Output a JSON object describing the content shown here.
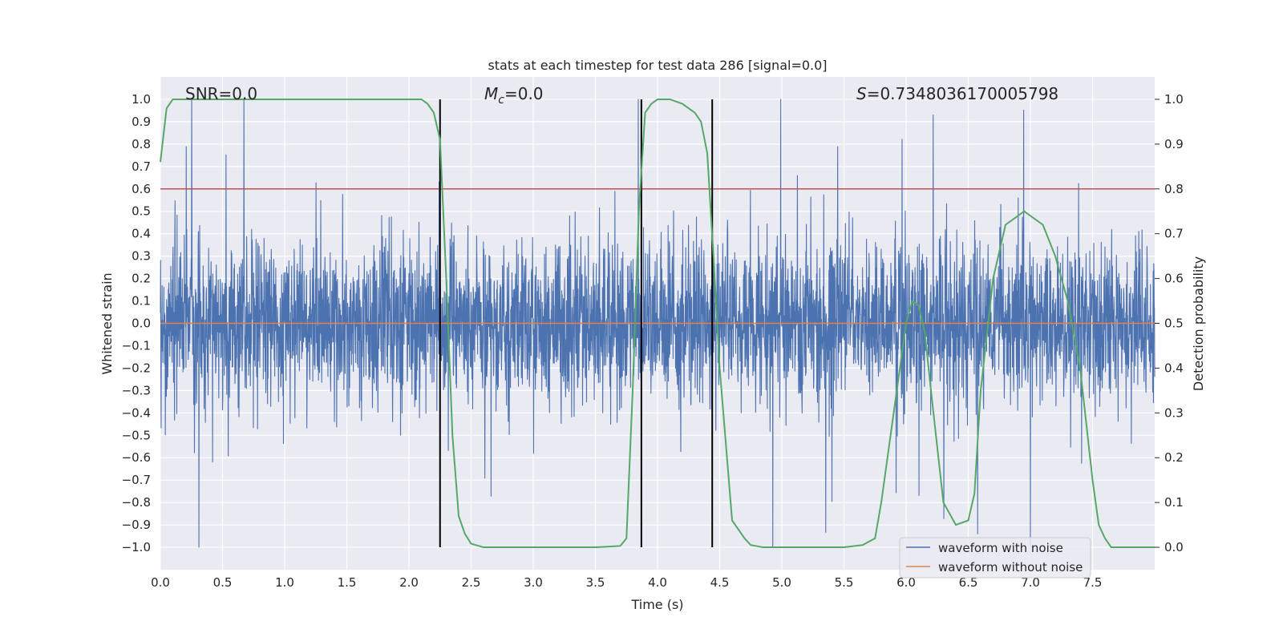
{
  "chart_data": {
    "type": "line",
    "title": "stats at each timestep for test data 286 [signal=0.0]",
    "xlabel": "Time (s)",
    "ylabel_left": "Whitened strain",
    "ylabel_right": "Detection probability",
    "xlim": [
      0.0,
      8.0
    ],
    "ylim_left": [
      -1.1,
      1.1
    ],
    "ylim_right": [
      -0.05,
      1.05
    ],
    "x_ticks": [
      0.0,
      0.5,
      1.0,
      1.5,
      2.0,
      2.5,
      3.0,
      3.5,
      4.0,
      4.5,
      5.0,
      5.5,
      6.0,
      6.5,
      7.0,
      7.5
    ],
    "x_tick_labels": [
      "0.0",
      "0.5",
      "1.0",
      "1.5",
      "2.0",
      "2.5",
      "3.0",
      "3.5",
      "4.0",
      "4.5",
      "5.0",
      "5.5",
      "6.0",
      "6.5",
      "7.0",
      "7.5"
    ],
    "y_ticks_left": [
      1.0,
      0.9,
      0.8,
      0.7,
      0.6,
      0.5,
      0.4,
      0.3,
      0.2,
      0.1,
      0.0,
      -0.1,
      -0.2,
      -0.3,
      -0.4,
      -0.5,
      -0.6,
      -0.7,
      -0.8,
      -0.9,
      -1.0
    ],
    "y_tick_labels_left": [
      "1.0",
      "0.9",
      "0.8",
      "0.7",
      "0.6",
      "0.5",
      "0.4",
      "0.3",
      "0.2",
      "0.1",
      "0.0",
      "−0.1",
      "−0.2",
      "−0.3",
      "−0.4",
      "−0.5",
      "−0.6",
      "−0.7",
      "−0.8",
      "−0.9",
      "−1.0"
    ],
    "y_ticks_right": [
      1.0,
      0.9,
      0.8,
      0.7,
      0.6,
      0.5,
      0.4,
      0.3,
      0.2,
      0.1,
      0.0
    ],
    "y_tick_labels_right": [
      "1.0",
      "0.9",
      "0.8",
      "0.7",
      "0.6",
      "0.5",
      "0.4",
      "0.3",
      "0.2",
      "0.1",
      "0.0"
    ],
    "threshold": 0.8,
    "vertical_lines": [
      2.25,
      3.87,
      4.44
    ],
    "annotations": {
      "snr": "SNR=0.0",
      "mc_symbol": "M",
      "mc_subscript": "c",
      "mc_value": "=0.0",
      "s_symbol": "S",
      "s_value": "=0.7348036170005798"
    },
    "series": [
      {
        "name": "waveform with noise",
        "color": "#4c72b0",
        "axis": "left",
        "description": "noisy whitened strain, dense band roughly ±0.4 with spikes to ±1.0",
        "noise_seed": 286,
        "noise_samples": 4000
      },
      {
        "name": "waveform without noise",
        "color": "#dd8452",
        "axis": "left",
        "x": [
          0.0,
          8.0
        ],
        "y": [
          0.0,
          0.0
        ]
      },
      {
        "name": "detection probability",
        "color": "#55a868",
        "axis": "right",
        "x": [
          0.0,
          0.05,
          0.1,
          0.2,
          0.4,
          0.8,
          1.2,
          1.6,
          2.0,
          2.1,
          2.15,
          2.2,
          2.25,
          2.3,
          2.35,
          2.4,
          2.45,
          2.5,
          2.6,
          3.0,
          3.5,
          3.7,
          3.75,
          3.8,
          3.85,
          3.9,
          3.95,
          4.0,
          4.1,
          4.2,
          4.3,
          4.35,
          4.4,
          4.45,
          4.5,
          4.55,
          4.6,
          4.7,
          4.75,
          4.85,
          5.0,
          5.5,
          5.65,
          5.75,
          5.8,
          5.9,
          6.0,
          6.05,
          6.1,
          6.15,
          6.2,
          6.3,
          6.4,
          6.5,
          6.55,
          6.6,
          6.7,
          6.8,
          6.9,
          6.95,
          7.0,
          7.1,
          7.2,
          7.3,
          7.4,
          7.5,
          7.55,
          7.6,
          7.65,
          7.7,
          7.8,
          8.0
        ],
        "y": [
          0.86,
          0.98,
          1.0,
          1.0,
          1.0,
          1.0,
          1.0,
          1.0,
          1.0,
          1.0,
          0.99,
          0.97,
          0.91,
          0.6,
          0.25,
          0.07,
          0.03,
          0.008,
          0.0,
          0.0,
          0.0,
          0.003,
          0.02,
          0.35,
          0.75,
          0.97,
          0.99,
          1.0,
          1.0,
          0.99,
          0.97,
          0.95,
          0.88,
          0.65,
          0.4,
          0.23,
          0.06,
          0.02,
          0.005,
          0.0,
          0.0,
          0.0,
          0.005,
          0.02,
          0.1,
          0.3,
          0.5,
          0.55,
          0.54,
          0.48,
          0.35,
          0.1,
          0.05,
          0.06,
          0.12,
          0.35,
          0.6,
          0.72,
          0.74,
          0.75,
          0.74,
          0.72,
          0.65,
          0.55,
          0.4,
          0.15,
          0.05,
          0.02,
          0.0,
          0.0,
          0.0,
          0.0
        ]
      },
      {
        "name": "threshold",
        "color": "#c44e52",
        "axis": "right",
        "y": 0.8
      }
    ],
    "legend": {
      "position": "lower-right",
      "entries": [
        {
          "label": "waveform with noise",
          "color": "#4c72b0"
        },
        {
          "label": "waveform without noise",
          "color": "#dd8452"
        }
      ]
    },
    "colors": {
      "background": "#eaeaf2",
      "grid": "#ffffff",
      "vline": "#000000"
    }
  }
}
